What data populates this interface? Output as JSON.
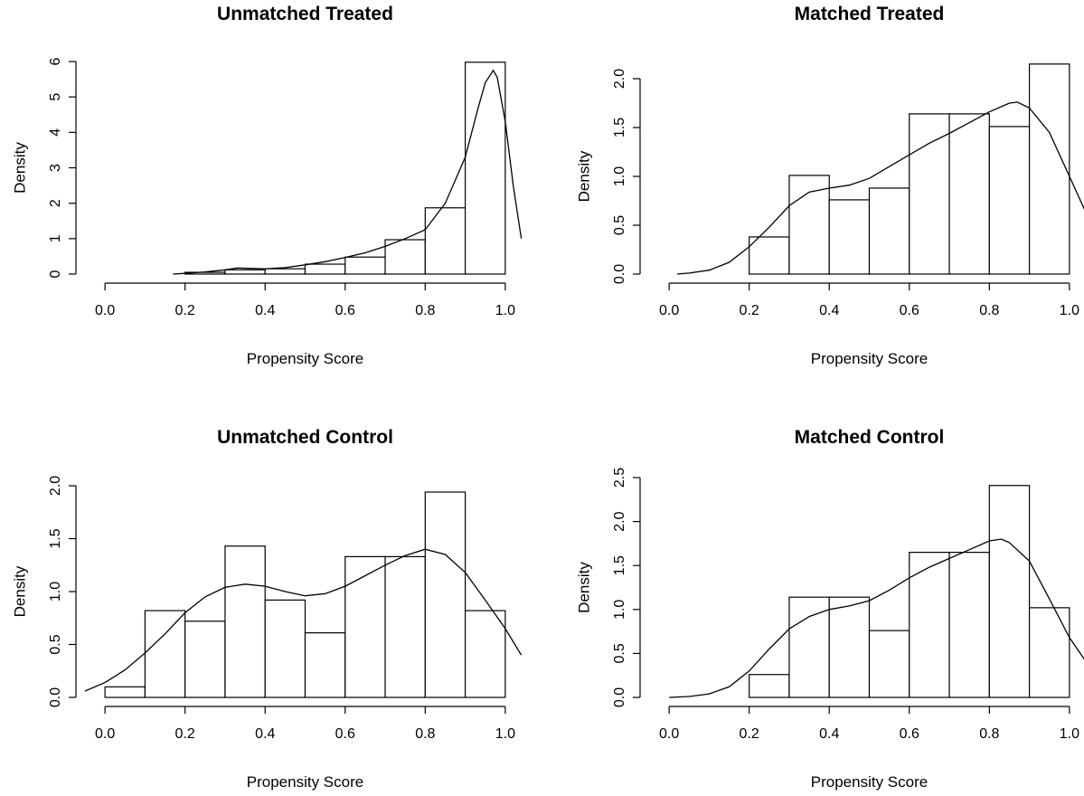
{
  "chart_data": [
    {
      "type": "bar",
      "title": "Unmatched Treated",
      "xlabel": "Propensity Score",
      "ylabel": "Density",
      "xlim": [
        -0.05,
        1.05
      ],
      "ylim": [
        0,
        6
      ],
      "xticks": [
        "0.0",
        "0.2",
        "0.4",
        "0.6",
        "0.8",
        "1.0"
      ],
      "yticks": [
        "0",
        "1",
        "2",
        "3",
        "4",
        "5",
        "6"
      ],
      "bins": [
        {
          "x0": 0.2,
          "x1": 0.3,
          "value": 0.05
        },
        {
          "x0": 0.3,
          "x1": 0.4,
          "value": 0.12
        },
        {
          "x0": 0.4,
          "x1": 0.5,
          "value": 0.15
        },
        {
          "x0": 0.5,
          "x1": 0.6,
          "value": 0.28
        },
        {
          "x0": 0.6,
          "x1": 0.7,
          "value": 0.48
        },
        {
          "x0": 0.7,
          "x1": 0.8,
          "value": 0.97
        },
        {
          "x0": 0.8,
          "x1": 0.9,
          "value": 1.87
        },
        {
          "x0": 0.9,
          "x1": 1.0,
          "value": 5.98
        }
      ],
      "density_curve": {
        "x": [
          0.17,
          0.2,
          0.25,
          0.3,
          0.33,
          0.36,
          0.4,
          0.45,
          0.5,
          0.55,
          0.6,
          0.65,
          0.7,
          0.75,
          0.8,
          0.85,
          0.9,
          0.93,
          0.95,
          0.97,
          0.98,
          1.0,
          1.02,
          1.04
        ],
        "y": [
          0.0,
          0.02,
          0.06,
          0.12,
          0.17,
          0.16,
          0.15,
          0.18,
          0.26,
          0.35,
          0.47,
          0.6,
          0.78,
          1.0,
          1.25,
          2.0,
          3.3,
          4.6,
          5.4,
          5.75,
          5.55,
          4.3,
          2.5,
          1.0
        ]
      }
    },
    {
      "type": "bar",
      "title": "Matched Treated",
      "xlabel": "Propensity Score",
      "ylabel": "Density",
      "xlim": [
        -0.05,
        1.05
      ],
      "ylim": [
        0,
        2.0
      ],
      "xticks": [
        "0.0",
        "0.2",
        "0.4",
        "0.6",
        "0.8",
        "1.0"
      ],
      "yticks": [
        "0.0",
        "0.5",
        "1.0",
        "1.5",
        "2.0"
      ],
      "bins": [
        {
          "x0": 0.2,
          "x1": 0.3,
          "value": 0.38
        },
        {
          "x0": 0.3,
          "x1": 0.4,
          "value": 1.01
        },
        {
          "x0": 0.4,
          "x1": 0.5,
          "value": 0.76
        },
        {
          "x0": 0.5,
          "x1": 0.6,
          "value": 0.88
        },
        {
          "x0": 0.6,
          "x1": 0.7,
          "value": 1.64
        },
        {
          "x0": 0.7,
          "x1": 0.8,
          "value": 1.64
        },
        {
          "x0": 0.8,
          "x1": 0.9,
          "value": 1.51
        },
        {
          "x0": 0.9,
          "x1": 1.0,
          "value": 2.15
        }
      ],
      "density_curve": {
        "x": [
          0.02,
          0.05,
          0.1,
          0.15,
          0.2,
          0.25,
          0.3,
          0.35,
          0.4,
          0.45,
          0.5,
          0.55,
          0.6,
          0.65,
          0.7,
          0.75,
          0.8,
          0.85,
          0.87,
          0.9,
          0.95,
          1.0,
          1.05
        ],
        "y": [
          0.0,
          0.01,
          0.04,
          0.12,
          0.28,
          0.48,
          0.7,
          0.84,
          0.88,
          0.91,
          0.98,
          1.1,
          1.22,
          1.34,
          1.44,
          1.55,
          1.66,
          1.75,
          1.76,
          1.7,
          1.45,
          1.0,
          0.55
        ]
      }
    },
    {
      "type": "bar",
      "title": "Unmatched Control",
      "xlabel": "Propensity Score",
      "ylabel": "Density",
      "xlim": [
        -0.05,
        1.05
      ],
      "ylim": [
        0,
        2.0
      ],
      "xticks": [
        "0.0",
        "0.2",
        "0.4",
        "0.6",
        "0.8",
        "1.0"
      ],
      "yticks": [
        "0.0",
        "0.5",
        "1.0",
        "1.5",
        "2.0"
      ],
      "bins": [
        {
          "x0": 0.0,
          "x1": 0.1,
          "value": 0.1
        },
        {
          "x0": 0.1,
          "x1": 0.2,
          "value": 0.82
        },
        {
          "x0": 0.2,
          "x1": 0.3,
          "value": 0.72
        },
        {
          "x0": 0.3,
          "x1": 0.4,
          "value": 1.43
        },
        {
          "x0": 0.4,
          "x1": 0.5,
          "value": 0.92
        },
        {
          "x0": 0.5,
          "x1": 0.6,
          "value": 0.61
        },
        {
          "x0": 0.6,
          "x1": 0.7,
          "value": 1.33
        },
        {
          "x0": 0.7,
          "x1": 0.8,
          "value": 1.33
        },
        {
          "x0": 0.8,
          "x1": 0.9,
          "value": 1.94
        },
        {
          "x0": 0.9,
          "x1": 1.0,
          "value": 0.82
        }
      ],
      "density_curve": {
        "x": [
          -0.05,
          0.0,
          0.05,
          0.1,
          0.15,
          0.2,
          0.25,
          0.3,
          0.35,
          0.4,
          0.45,
          0.5,
          0.55,
          0.6,
          0.65,
          0.7,
          0.75,
          0.8,
          0.85,
          0.9,
          0.95,
          1.0,
          1.04
        ],
        "y": [
          0.06,
          0.14,
          0.26,
          0.42,
          0.6,
          0.8,
          0.95,
          1.04,
          1.07,
          1.05,
          1.0,
          0.96,
          0.98,
          1.05,
          1.15,
          1.25,
          1.34,
          1.4,
          1.35,
          1.18,
          0.92,
          0.65,
          0.4
        ]
      }
    },
    {
      "type": "bar",
      "title": "Matched Control",
      "xlabel": "Propensity Score",
      "ylabel": "Density",
      "xlim": [
        -0.05,
        1.05
      ],
      "ylim": [
        0,
        2.5
      ],
      "xticks": [
        "0.0",
        "0.2",
        "0.4",
        "0.6",
        "0.8",
        "1.0"
      ],
      "yticks": [
        "0.0",
        "0.5",
        "1.0",
        "1.5",
        "2.0",
        "2.5"
      ],
      "bins": [
        {
          "x0": 0.2,
          "x1": 0.3,
          "value": 0.26
        },
        {
          "x0": 0.3,
          "x1": 0.4,
          "value": 1.14
        },
        {
          "x0": 0.4,
          "x1": 0.5,
          "value": 1.14
        },
        {
          "x0": 0.5,
          "x1": 0.6,
          "value": 0.76
        },
        {
          "x0": 0.6,
          "x1": 0.7,
          "value": 1.65
        },
        {
          "x0": 0.7,
          "x1": 0.8,
          "value": 1.65
        },
        {
          "x0": 0.8,
          "x1": 0.9,
          "value": 2.41
        },
        {
          "x0": 0.9,
          "x1": 1.0,
          "value": 1.02
        }
      ],
      "density_curve": {
        "x": [
          0.0,
          0.05,
          0.1,
          0.15,
          0.2,
          0.25,
          0.3,
          0.35,
          0.4,
          0.45,
          0.5,
          0.55,
          0.6,
          0.65,
          0.7,
          0.75,
          0.8,
          0.83,
          0.85,
          0.9,
          0.95,
          1.0,
          1.05
        ],
        "y": [
          0.0,
          0.01,
          0.04,
          0.12,
          0.3,
          0.55,
          0.78,
          0.92,
          1.0,
          1.04,
          1.1,
          1.22,
          1.36,
          1.48,
          1.58,
          1.68,
          1.78,
          1.8,
          1.76,
          1.55,
          1.12,
          0.68,
          0.35
        ]
      }
    }
  ]
}
